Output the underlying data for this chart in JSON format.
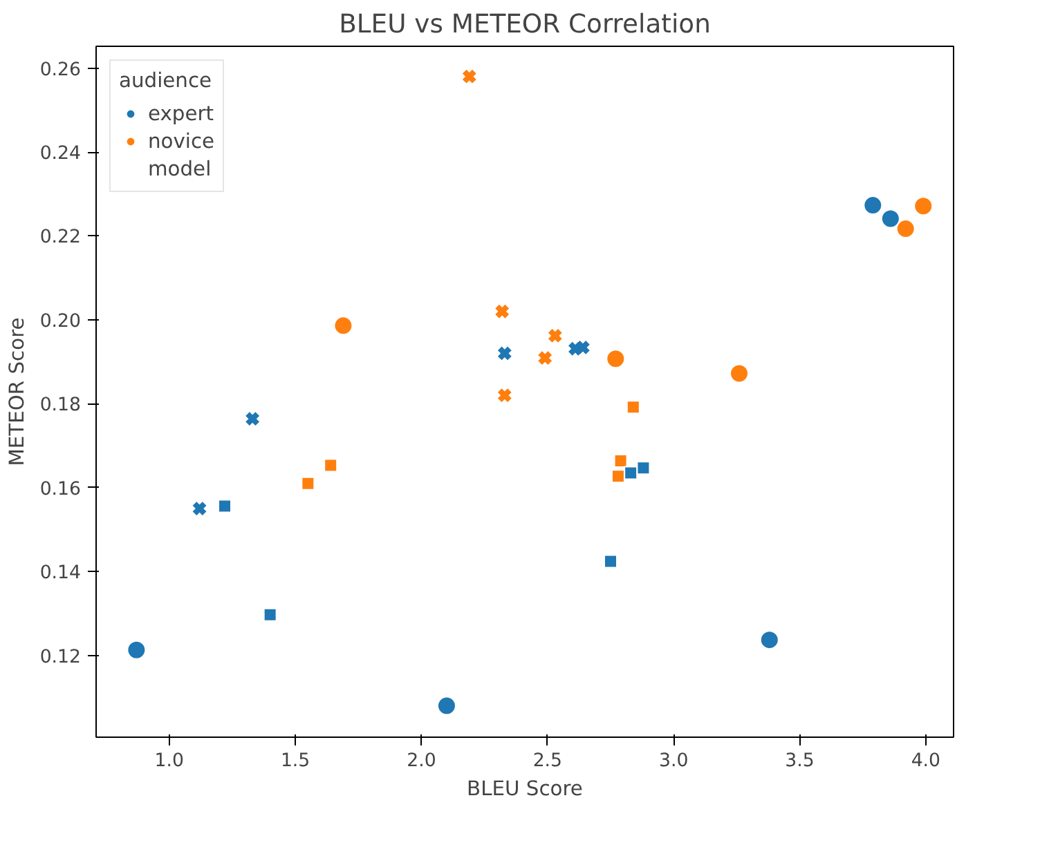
{
  "chart_data": {
    "type": "scatter",
    "title": "BLEU vs METEOR Correlation",
    "xlabel": "BLEU Score",
    "ylabel": "METEOR Score",
    "legend_title": "audience",
    "annotations": [
      "model"
    ],
    "xlim": [
      0.71,
      4.11
    ],
    "ylim": [
      0.1005,
      0.2652
    ],
    "xticks": [
      {
        "value": 1,
        "label": "1.0"
      },
      1.5,
      {
        "value": 2,
        "label": "2.0"
      },
      2.5,
      {
        "value": 3,
        "label": "3.0"
      },
      3.5,
      {
        "value": 4,
        "label": "4.0"
      }
    ],
    "yticks": [
      0.12,
      0.14,
      0.16,
      0.18,
      {
        "value": 0.2,
        "label": "0.20"
      },
      0.22,
      0.24,
      0.26
    ],
    "grid": false,
    "legend": "top left",
    "series": [
      {
        "name": "expert",
        "color": "#1f77b4",
        "marker": "circle",
        "x": [
          0.87,
          2.1,
          3.38,
          3.79,
          3.86
        ],
        "values": [
          0.1213,
          0.108,
          0.1237,
          0.2273,
          0.2241
        ]
      },
      {
        "name": "novice",
        "color": "#ff7f0e",
        "marker": "circle",
        "x": [
          1.69,
          2.77,
          3.26,
          3.92,
          3.99
        ],
        "values": [
          0.1986,
          0.1907,
          0.1872,
          0.2217,
          0.2271
        ]
      },
      {
        "color": "#1f77b4",
        "marker": "cross",
        "x": [
          1.12,
          1.33,
          2.33,
          2.61,
          2.64
        ],
        "values": [
          0.155,
          0.1764,
          0.192,
          0.1931,
          0.1934
        ]
      },
      {
        "color": "#ff7f0e",
        "marker": "cross",
        "x": [
          2.19,
          2.32,
          2.33,
          2.49,
          2.53
        ],
        "values": [
          0.258,
          0.202,
          0.182,
          0.1909,
          0.1962
        ]
      },
      {
        "color": "#ff7f0e",
        "marker": "square",
        "x": [
          1.55,
          1.64,
          2.78,
          2.79,
          2.84
        ],
        "values": [
          0.161,
          0.1653,
          0.1627,
          0.1664,
          0.1792
        ]
      },
      {
        "color": "#1f77b4",
        "marker": "square",
        "x": [
          1.22,
          1.4,
          2.75,
          2.83,
          2.88
        ],
        "values": [
          0.1556,
          0.1297,
          0.1424,
          0.1635,
          0.1647
        ]
      }
    ]
  }
}
